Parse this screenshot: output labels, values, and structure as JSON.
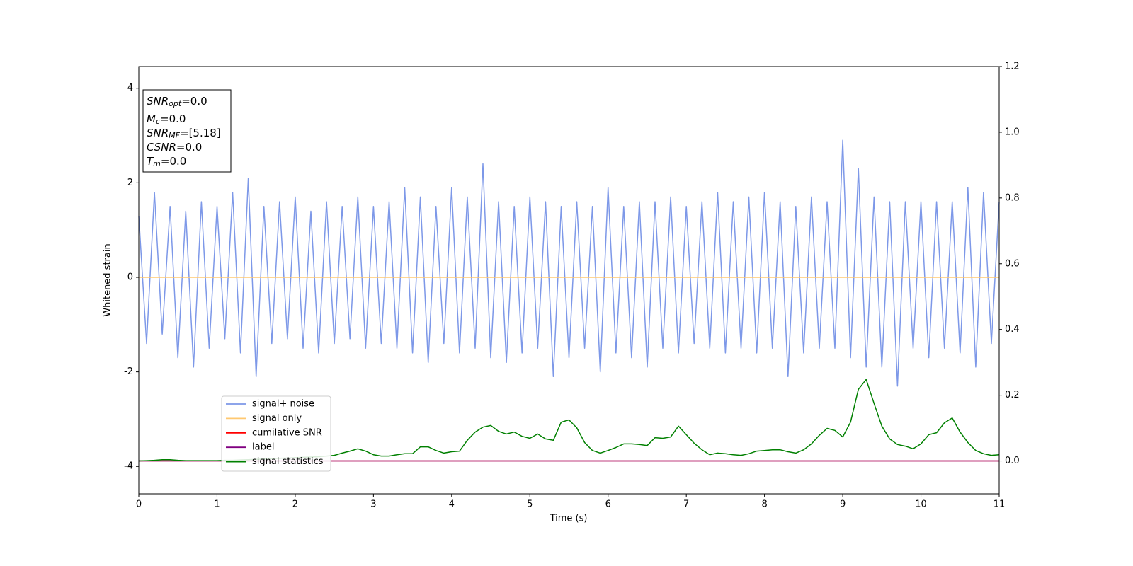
{
  "chart_data": {
    "type": "line",
    "xlabel": "Time (s)",
    "ylabel": "Whitened strain",
    "xlim": [
      0,
      11
    ],
    "xticks": [
      0,
      1,
      2,
      3,
      4,
      5,
      6,
      7,
      8,
      9,
      10,
      11
    ],
    "ylim": [
      -4.58,
      4.46
    ],
    "yticks": [
      -4,
      -2,
      0,
      2,
      4
    ],
    "y2lim": [
      -0.1,
      1.2
    ],
    "y2ticks": [
      {
        "value": 0,
        "label": "0.0"
      },
      0.2,
      0.4,
      0.6,
      0.8,
      {
        "value": 1,
        "label": "1.0"
      },
      1.2
    ],
    "legend": true,
    "annotations": [
      {
        "base": "SNR",
        "sub": "opt",
        "rest": "=0.0"
      },
      {
        "base": "M",
        "sub": "c",
        "rest": "=0.0"
      },
      {
        "base": "SNR",
        "sub": "MF",
        "rest": "=[5.18]"
      },
      {
        "base": "CSNR",
        "rest": "=0.0"
      },
      {
        "base": "T",
        "sub": "m",
        "rest": "=0.0"
      }
    ],
    "x": [
      0,
      0.1,
      0.2,
      0.3,
      0.4,
      0.5,
      0.6,
      0.7,
      0.8,
      0.9,
      1,
      1.1,
      1.2,
      1.3,
      1.4,
      1.5,
      1.6,
      1.7,
      1.8,
      1.9,
      2,
      2.1,
      2.2,
      2.3,
      2.4,
      2.5,
      2.6,
      2.7,
      2.8,
      2.9,
      3,
      3.1,
      3.2,
      3.3,
      3.4,
      3.5,
      3.6,
      3.7,
      3.8,
      3.9,
      4,
      4.1,
      4.2,
      4.3,
      4.4,
      4.5,
      4.6,
      4.7,
      4.8,
      4.9,
      5,
      5.1,
      5.2,
      5.3,
      5.4,
      5.5,
      5.6,
      5.7,
      5.8,
      5.9,
      6,
      6.1,
      6.2,
      6.3,
      6.4,
      6.5,
      6.6,
      6.7,
      6.8,
      6.9,
      7,
      7.1,
      7.2,
      7.3,
      7.4,
      7.5,
      7.6,
      7.7,
      7.8,
      7.9,
      8,
      8.1,
      8.2,
      8.3,
      8.4,
      8.5,
      8.6,
      8.7,
      8.8,
      8.9,
      9,
      9.1,
      9.2,
      9.3,
      9.4,
      9.5,
      9.6,
      9.7,
      9.8,
      9.9,
      10,
      10.1,
      10.2,
      10.3,
      10.4,
      10.5,
      10.6,
      10.7,
      10.8,
      10.9,
      11
    ],
    "series": [
      {
        "name": "signal+ noise",
        "color": "#6f8de6",
        "values": [
          1.3,
          -1.4,
          1.8,
          -1.2,
          1.5,
          -1.7,
          1.4,
          -1.9,
          1.6,
          -1.5,
          1.5,
          -1.3,
          1.8,
          -1.6,
          2.1,
          -2.1,
          1.5,
          -1.4,
          1.6,
          -1.3,
          1.7,
          -1.5,
          1.4,
          -1.6,
          1.6,
          -1.4,
          1.5,
          -1.3,
          1.7,
          -1.5,
          1.5,
          -1.4,
          1.6,
          -1.5,
          1.9,
          -1.6,
          1.7,
          -1.8,
          1.5,
          -1.4,
          1.9,
          -1.6,
          1.7,
          -1.5,
          2.4,
          -1.7,
          1.6,
          -1.8,
          1.5,
          -1.6,
          1.7,
          -1.5,
          1.6,
          -2.1,
          1.5,
          -1.7,
          1.6,
          -1.5,
          1.5,
          -2.0,
          1.9,
          -1.6,
          1.5,
          -1.7,
          1.6,
          -1.9,
          1.6,
          -1.5,
          1.7,
          -1.6,
          1.5,
          -1.4,
          1.6,
          -1.5,
          1.8,
          -1.6,
          1.6,
          -1.5,
          1.7,
          -1.6,
          1.8,
          -1.5,
          1.6,
          -2.1,
          1.5,
          -1.6,
          1.7,
          -1.5,
          1.6,
          -1.5,
          2.9,
          -1.7,
          2.3,
          -1.9,
          1.7,
          -1.9,
          1.6,
          -2.3,
          1.6,
          -1.5,
          1.6,
          -1.7,
          1.6,
          -1.5,
          1.6,
          -1.6,
          1.9,
          -1.9,
          1.8,
          -1.4,
          1.6
        ]
      },
      {
        "name": "signal only",
        "color": "#ffc870",
        "values": [
          0,
          0,
          0,
          0,
          0,
          0,
          0,
          0,
          0,
          0,
          0,
          0,
          0,
          0,
          0,
          0,
          0,
          0,
          0,
          0,
          0,
          0,
          0,
          0,
          0,
          0,
          0,
          0,
          0,
          0,
          0,
          0,
          0,
          0,
          0,
          0,
          0,
          0,
          0,
          0,
          0,
          0,
          0,
          0,
          0,
          0,
          0,
          0,
          0,
          0,
          0,
          0,
          0,
          0,
          0,
          0,
          0,
          0,
          0,
          0,
          0,
          0,
          0,
          0,
          0,
          0,
          0,
          0,
          0,
          0,
          0,
          0,
          0,
          0,
          0,
          0,
          0,
          0,
          0,
          0,
          0,
          0,
          0,
          0,
          0,
          0,
          0,
          0,
          0,
          0,
          0,
          0,
          0,
          0,
          0,
          0,
          0,
          0,
          0,
          0,
          0,
          0,
          0,
          0,
          0,
          0,
          0,
          0,
          0,
          0,
          0
        ]
      },
      {
        "name": "cumilative SNR",
        "color": "#ff0000",
        "axis": "y2",
        "values": [
          0,
          0,
          0,
          0,
          0,
          0,
          0,
          0,
          0,
          0,
          0,
          0,
          0,
          0,
          0,
          0,
          0,
          0,
          0,
          0,
          0,
          0,
          0,
          0,
          0,
          0,
          0,
          0,
          0,
          0,
          0,
          0,
          0,
          0,
          0,
          0,
          0,
          0,
          0,
          0,
          0,
          0,
          0,
          0,
          0,
          0,
          0,
          0,
          0,
          0,
          0,
          0,
          0,
          0,
          0,
          0,
          0,
          0,
          0,
          0,
          0,
          0,
          0,
          0,
          0,
          0,
          0,
          0,
          0,
          0,
          0,
          0,
          0,
          0,
          0,
          0,
          0,
          0,
          0,
          0,
          0,
          0,
          0,
          0,
          0,
          0,
          0,
          0,
          0,
          0,
          0,
          0,
          0,
          0,
          0,
          0,
          0,
          0,
          0,
          0,
          0,
          0,
          0,
          0,
          0,
          0,
          0,
          0,
          0,
          0,
          0
        ]
      },
      {
        "name": "label",
        "color": "#800080",
        "axis": "y2",
        "values": [
          0,
          0,
          0,
          0,
          0,
          0,
          0,
          0,
          0,
          0,
          0,
          0,
          0,
          0,
          0,
          0,
          0,
          0,
          0,
          0,
          0,
          0,
          0,
          0,
          0,
          0,
          0,
          0,
          0,
          0,
          0,
          0,
          0,
          0,
          0,
          0,
          0,
          0,
          0,
          0,
          0,
          0,
          0,
          0,
          0,
          0,
          0,
          0,
          0,
          0,
          0,
          0,
          0,
          0,
          0,
          0,
          0,
          0,
          0,
          0,
          0,
          0,
          0,
          0,
          0,
          0,
          0,
          0,
          0,
          0,
          0,
          0,
          0,
          0,
          0,
          0,
          0,
          0,
          0,
          0,
          0,
          0,
          0,
          0,
          0,
          0,
          0,
          0,
          0,
          0,
          0,
          0,
          0,
          0,
          0,
          0,
          0,
          0,
          0,
          0,
          0,
          0,
          0,
          0,
          0,
          0,
          0,
          0,
          0,
          0,
          0
        ]
      },
      {
        "name": "signal statistics",
        "color": "#008000",
        "axis": "y2",
        "values": [
          0,
          0.001,
          0.002,
          0.004,
          0.004,
          0.002,
          0.001,
          0.001,
          0.001,
          0.001,
          0.001,
          0.002,
          0.002,
          0.003,
          0.004,
          0.005,
          0.006,
          0.007,
          0.008,
          0.009,
          0.01,
          0.011,
          0.012,
          0.013,
          0.015,
          0.017,
          0.024,
          0.03,
          0.037,
          0.03,
          0.019,
          0.015,
          0.015,
          0.019,
          0.022,
          0.022,
          0.043,
          0.043,
          0.032,
          0.024,
          0.028,
          0.03,
          0.063,
          0.088,
          0.103,
          0.108,
          0.09,
          0.082,
          0.088,
          0.075,
          0.069,
          0.082,
          0.067,
          0.063,
          0.118,
          0.125,
          0.101,
          0.056,
          0.032,
          0.024,
          0.032,
          0.041,
          0.052,
          0.052,
          0.05,
          0.047,
          0.071,
          0.069,
          0.073,
          0.106,
          0.08,
          0.054,
          0.034,
          0.019,
          0.024,
          0.022,
          0.019,
          0.017,
          0.022,
          0.03,
          0.032,
          0.034,
          0.034,
          0.028,
          0.024,
          0.034,
          0.052,
          0.078,
          0.099,
          0.093,
          0.073,
          0.118,
          0.218,
          0.248,
          0.175,
          0.106,
          0.067,
          0.05,
          0.045,
          0.037,
          0.052,
          0.08,
          0.086,
          0.116,
          0.131,
          0.088,
          0.056,
          0.032,
          0.022,
          0.017,
          0.019
        ]
      }
    ]
  }
}
